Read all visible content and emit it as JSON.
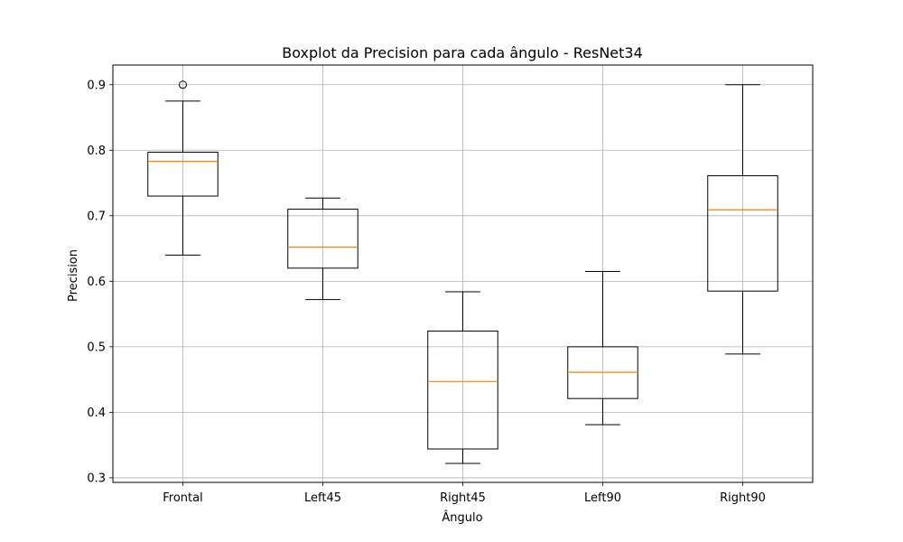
{
  "chart_data": {
    "type": "boxplot",
    "title": "Boxplot da Precision para cada ângulo - ResNet34",
    "xlabel": "Ângulo",
    "ylabel": "Precision",
    "categories": [
      "Frontal",
      "Left45",
      "Right45",
      "Left90",
      "Right90"
    ],
    "ylim": [
      0.293,
      0.93
    ],
    "yticks": [
      0.3,
      0.4,
      0.5,
      0.6,
      0.7,
      0.8,
      0.9
    ],
    "ytick_labels": [
      "0.3",
      "0.4",
      "0.5",
      "0.6",
      "0.7",
      "0.8",
      "0.9"
    ],
    "grid": true,
    "boxes": [
      {
        "whisker_low": 0.64,
        "q1": 0.73,
        "median": 0.783,
        "q3": 0.797,
        "whisker_high": 0.875,
        "outliers": [
          0.9
        ]
      },
      {
        "whisker_low": 0.572,
        "q1": 0.62,
        "median": 0.652,
        "q3": 0.71,
        "whisker_high": 0.727,
        "outliers": []
      },
      {
        "whisker_low": 0.322,
        "q1": 0.344,
        "median": 0.447,
        "q3": 0.524,
        "whisker_high": 0.584,
        "outliers": []
      },
      {
        "whisker_low": 0.381,
        "q1": 0.421,
        "median": 0.461,
        "q3": 0.5,
        "whisker_high": 0.615,
        "outliers": []
      },
      {
        "whisker_low": 0.489,
        "q1": 0.585,
        "median": 0.709,
        "q3": 0.761,
        "whisker_high": 0.9,
        "outliers": []
      }
    ],
    "colors": {
      "box": "#000000",
      "median": "#ff7f0e",
      "grid": "#b0b0b0"
    }
  }
}
